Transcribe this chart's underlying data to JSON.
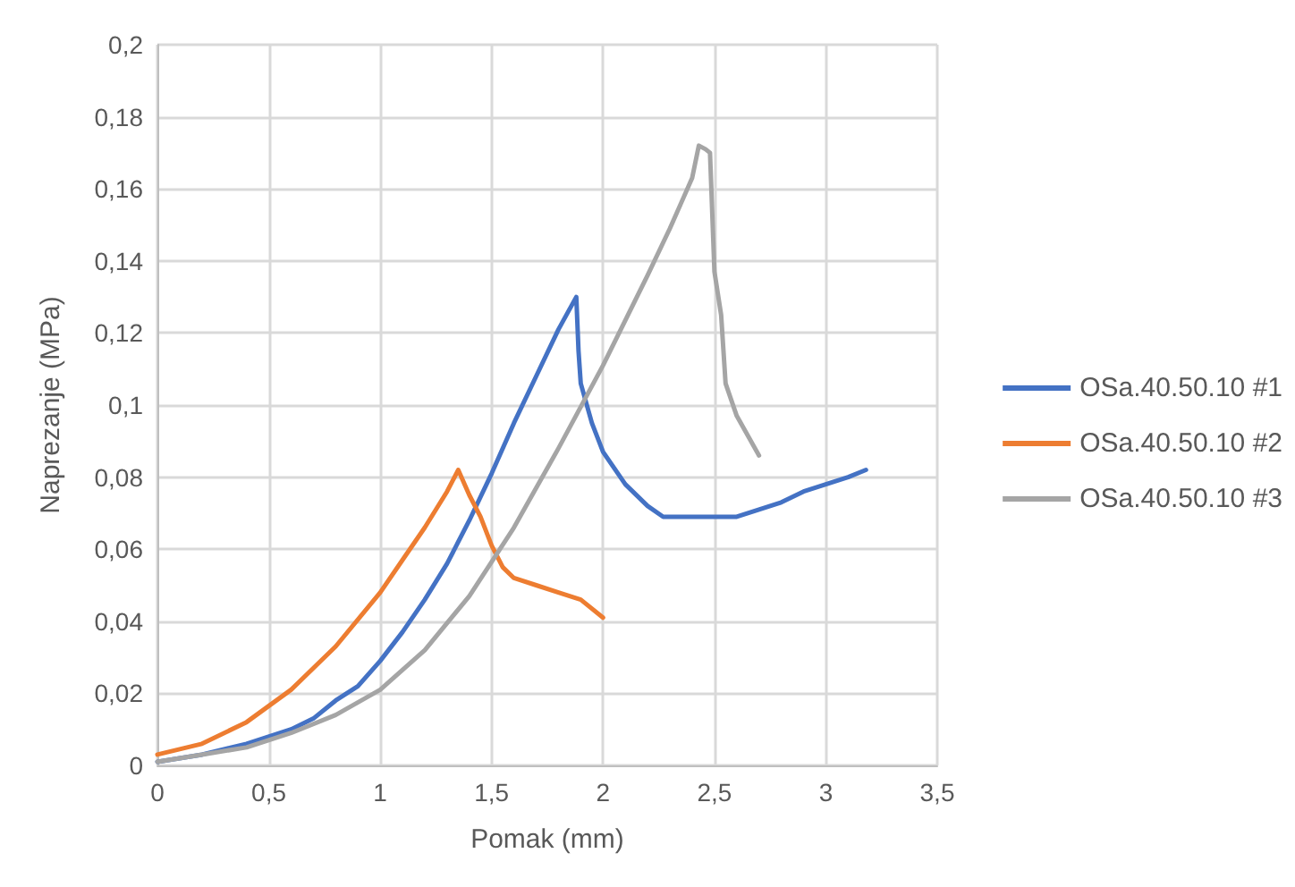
{
  "chart_data": {
    "type": "line",
    "xlabel": "Pomak (mm)",
    "ylabel": "Naprezanje (MPa)",
    "xlim": [
      0,
      3.5
    ],
    "ylim": [
      0,
      0.2
    ],
    "xticks": [
      0,
      {
        "value": 0.5,
        "label": "0,5"
      },
      1,
      {
        "value": 1.5,
        "label": "1,5"
      },
      2,
      {
        "value": 2.5,
        "label": "2,5"
      },
      3,
      {
        "value": 3.5,
        "label": "3,5"
      }
    ],
    "yticks": [
      0,
      {
        "value": 0.02,
        "label": "0,02"
      },
      {
        "value": 0.04,
        "label": "0,04"
      },
      {
        "value": 0.06,
        "label": "0,06"
      },
      {
        "value": 0.08,
        "label": "0,08"
      },
      {
        "value": 0.1,
        "label": "0,1"
      },
      {
        "value": 0.12,
        "label": "0,12"
      },
      {
        "value": 0.14,
        "label": "0,14"
      },
      {
        "value": 0.16,
        "label": "0,16"
      },
      {
        "value": 0.18,
        "label": "0,18"
      },
      {
        "value": 0.2,
        "label": "0,2"
      }
    ],
    "grid": true,
    "legend": "right",
    "marker": "none",
    "line_style": "solid",
    "series": [
      {
        "name": "OSa.40.50.10 #1",
        "color": "#4472c4",
        "x": [
          0,
          0.2,
          0.4,
          0.6,
          0.7,
          0.8,
          0.9,
          1.0,
          1.1,
          1.2,
          1.3,
          1.4,
          1.5,
          1.6,
          1.7,
          1.8,
          1.88,
          1.89,
          1.9,
          1.95,
          2.0,
          2.1,
          2.2,
          2.27,
          2.4,
          2.6,
          2.7,
          2.8,
          2.9,
          3.0,
          3.1,
          3.18
        ],
        "values": [
          0.001,
          0.003,
          0.006,
          0.01,
          0.013,
          0.018,
          0.022,
          0.029,
          0.037,
          0.046,
          0.056,
          0.068,
          0.081,
          0.095,
          0.108,
          0.121,
          0.13,
          0.115,
          0.106,
          0.095,
          0.087,
          0.078,
          0.072,
          0.069,
          0.069,
          0.069,
          0.071,
          0.073,
          0.076,
          0.078,
          0.08,
          0.082
        ]
      },
      {
        "name": "OSa.40.50.10 #2",
        "color": "#ed7d31",
        "x": [
          0,
          0.2,
          0.4,
          0.6,
          0.8,
          1.0,
          1.1,
          1.2,
          1.3,
          1.35,
          1.4,
          1.45,
          1.5,
          1.55,
          1.6,
          1.7,
          1.8,
          1.9,
          2.0
        ],
        "values": [
          0.003,
          0.006,
          0.012,
          0.021,
          0.033,
          0.048,
          0.057,
          0.066,
          0.076,
          0.082,
          0.075,
          0.069,
          0.061,
          0.055,
          0.052,
          0.05,
          0.048,
          0.046,
          0.041
        ]
      },
      {
        "name": "OSa.40.50.10 #3",
        "color": "#a5a5a5",
        "x": [
          0,
          0.2,
          0.4,
          0.6,
          0.8,
          1.0,
          1.2,
          1.4,
          1.6,
          1.8,
          2.0,
          2.2,
          2.3,
          2.4,
          2.43,
          2.46,
          2.48,
          2.5,
          2.53,
          2.55,
          2.6,
          2.7
        ],
        "values": [
          0.001,
          0.003,
          0.005,
          0.009,
          0.014,
          0.021,
          0.032,
          0.047,
          0.066,
          0.088,
          0.111,
          0.136,
          0.149,
          0.163,
          0.172,
          0.171,
          0.17,
          0.137,
          0.125,
          0.106,
          0.097,
          0.086
        ]
      }
    ]
  }
}
